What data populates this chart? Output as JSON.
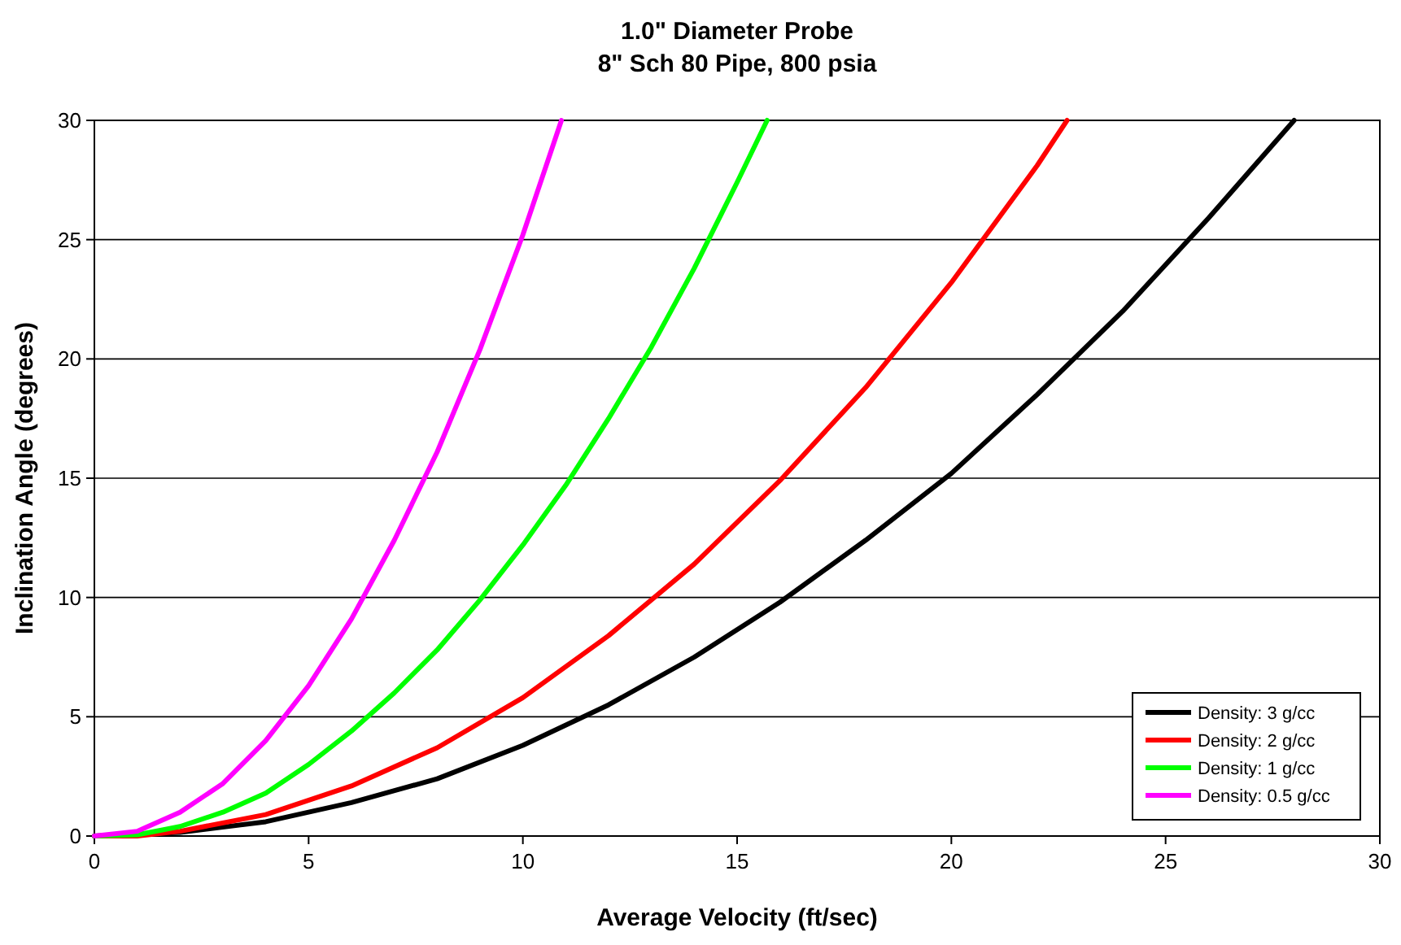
{
  "chart_data": {
    "type": "line",
    "title": "1.0\" Diameter Probe\n8\" Sch 80 Pipe, 800 psia",
    "xlabel": "Average Velocity (ft/sec)",
    "ylabel": "Inclination Angle (degrees)",
    "xlim": [
      0,
      30
    ],
    "ylim": [
      0,
      30
    ],
    "xticks": [
      0,
      5,
      10,
      15,
      20,
      25,
      30
    ],
    "yticks": [
      0,
      5,
      10,
      15,
      20,
      25,
      30
    ],
    "grid": "y",
    "legend": "bottom right",
    "marker": "none",
    "line_style": "solid",
    "series": [
      {
        "name": "Density: 3 g/cc",
        "color": "#000000",
        "x": [
          0,
          2,
          4,
          6,
          8,
          10,
          12,
          14,
          16,
          18,
          20,
          22,
          24,
          26,
          28
        ],
        "values": [
          0,
          0.15,
          0.6,
          1.4,
          2.4,
          3.8,
          5.5,
          7.5,
          9.8,
          12.4,
          15.2,
          18.5,
          22,
          25.9,
          30
        ]
      },
      {
        "name": "Density: 2 g/cc",
        "color": "#ff0000",
        "x": [
          0,
          1,
          2,
          4,
          6,
          8,
          10,
          12,
          14,
          16,
          18,
          20,
          22,
          22.7
        ],
        "values": [
          0,
          0,
          0.2,
          0.9,
          2.1,
          3.7,
          5.8,
          8.4,
          11.4,
          14.9,
          18.8,
          23.2,
          28.1,
          30
        ]
      },
      {
        "name": "Density: 1 g/cc",
        "color": "#00ff00",
        "x": [
          0,
          1,
          2,
          3,
          4,
          5,
          6,
          7,
          8,
          9,
          10,
          11,
          12,
          13,
          14,
          15,
          15.7
        ],
        "values": [
          0,
          0.05,
          0.4,
          1,
          1.8,
          3,
          4.4,
          6,
          7.8,
          9.9,
          12.2,
          14.7,
          17.5,
          20.5,
          23.8,
          27.4,
          30
        ]
      },
      {
        "name": "Density: 0.5 g/cc",
        "color": "#ff00ff",
        "x": [
          0,
          1,
          2,
          3,
          4,
          5,
          6,
          7,
          8,
          9,
          10,
          10.9
        ],
        "values": [
          0,
          0.2,
          1,
          2.2,
          4,
          6.3,
          9.1,
          12.4,
          16.1,
          20.4,
          25.2,
          30
        ]
      }
    ]
  }
}
